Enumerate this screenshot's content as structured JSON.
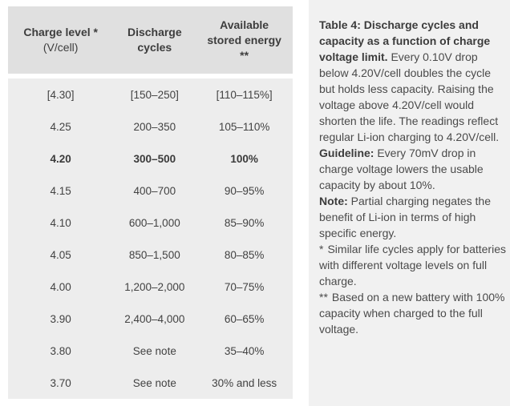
{
  "colors": {
    "table_header_bg": "#e0e0e0",
    "table_body_bg": "#ededed",
    "panel_bg": "#f1f1f1",
    "text": "#424242"
  },
  "table": {
    "header": {
      "col1": {
        "line1": "Charge level *",
        "line2": "(V/cell)"
      },
      "col2": {
        "line1": "Discharge",
        "line2": "cycles"
      },
      "col3": {
        "line1": "Available",
        "line2": "stored energy",
        "line3": "**"
      }
    },
    "rows": [
      {
        "charge_level": "[4.30]",
        "discharge_cycles": "[150–250]",
        "stored_energy": "[110–115%]",
        "bold": false
      },
      {
        "charge_level": "4.25",
        "discharge_cycles": "200–350",
        "stored_energy": "105–110%",
        "bold": false
      },
      {
        "charge_level": "4.20",
        "discharge_cycles": "300–500",
        "stored_energy": "100%",
        "bold": true
      },
      {
        "charge_level": "4.15",
        "discharge_cycles": "400–700",
        "stored_energy": "90–95%",
        "bold": false
      },
      {
        "charge_level": "4.10",
        "discharge_cycles": "600–1,000",
        "stored_energy": "85–90%",
        "bold": false
      },
      {
        "charge_level": "4.05",
        "discharge_cycles": "850–1,500",
        "stored_energy": "80–85%",
        "bold": false
      },
      {
        "charge_level": "4.00",
        "discharge_cycles": "1,200–2,000",
        "stored_energy": "70–75%",
        "bold": false
      },
      {
        "charge_level": "3.90",
        "discharge_cycles": "2,400–4,000",
        "stored_energy": "60–65%",
        "bold": false
      },
      {
        "charge_level": "3.80",
        "discharge_cycles": "See note",
        "stored_energy": "35–40%",
        "bold": false
      },
      {
        "charge_level": "3.70",
        "discharge_cycles": "See note",
        "stored_energy": "30% and less",
        "bold": false
      }
    ]
  },
  "panel": {
    "caption_bold": "Table 4: Discharge cycles and capacity as a function of charge voltage limit.",
    "caption_text": "Every 0.10V drop below 4.20V/cell doubles the cycle but holds less capacity. Raising the voltage above 4.20V/cell would shorten the life. The readings reflect regular Li-ion charging to 4.20V/cell.",
    "guideline_label": "Guideline:",
    "guideline_text": "Every 70mV drop in charge voltage lowers the usable capacity by about 10%.",
    "note_label": "Note:",
    "note_text": "Partial charging negates the benefit of Li-ion in terms of high specific energy.",
    "footnote1_marker": "*",
    "footnote1_text": "Similar life cycles apply for batteries with different voltage levels on full charge.",
    "footnote2_marker": "**",
    "footnote2_text": "Based on a new battery with 100% capacity when charged to the full voltage."
  }
}
